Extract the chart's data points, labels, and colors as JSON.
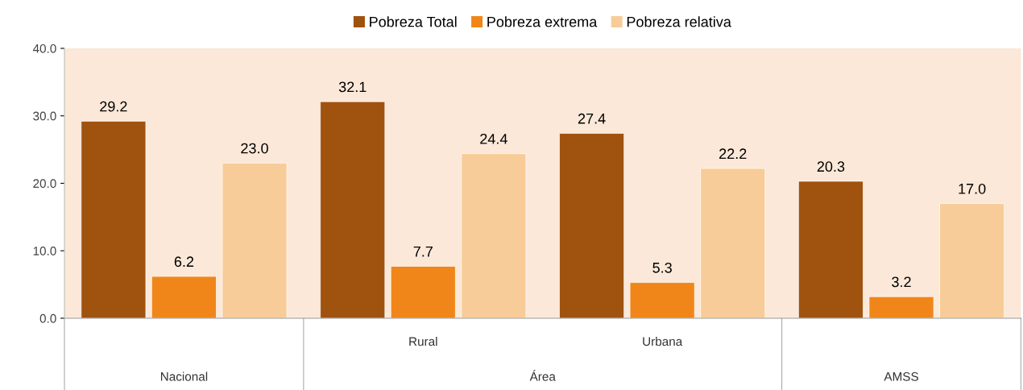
{
  "chart_data": {
    "type": "bar",
    "categories": [
      "Nacional",
      "Rural",
      "Urbana",
      "AMSS"
    ],
    "series": [
      {
        "name": "Pobreza Total",
        "color": "#a0520f",
        "values": [
          29.2,
          32.1,
          27.4,
          20.3
        ],
        "value_labels": [
          "29.2",
          "32.1",
          "27.4",
          "20.3"
        ]
      },
      {
        "name": "Pobreza extrema",
        "color": "#f0861a",
        "values": [
          6.2,
          7.7,
          5.3,
          3.2
        ],
        "value_labels": [
          "6.2",
          "7.7",
          "5.3",
          "3.2"
        ]
      },
      {
        "name": "Pobreza relativa",
        "color": "#f8cc98",
        "values": [
          23.0,
          24.4,
          22.2,
          17.0
        ],
        "value_labels": [
          "23.0",
          "24.4",
          "22.2",
          "17.0"
        ]
      }
    ],
    "ylim": [
      0,
      40
    ],
    "yticks": [
      {
        "value": 0,
        "label": "0.0"
      },
      {
        "value": 10,
        "label": "10.0"
      },
      {
        "value": 20,
        "label": "20.0"
      },
      {
        "value": 30,
        "label": "30.0"
      },
      {
        "value": 40,
        "label": "40.0"
      }
    ],
    "annotations": [
      "Área"
    ],
    "legend": "top",
    "grid": false
  }
}
